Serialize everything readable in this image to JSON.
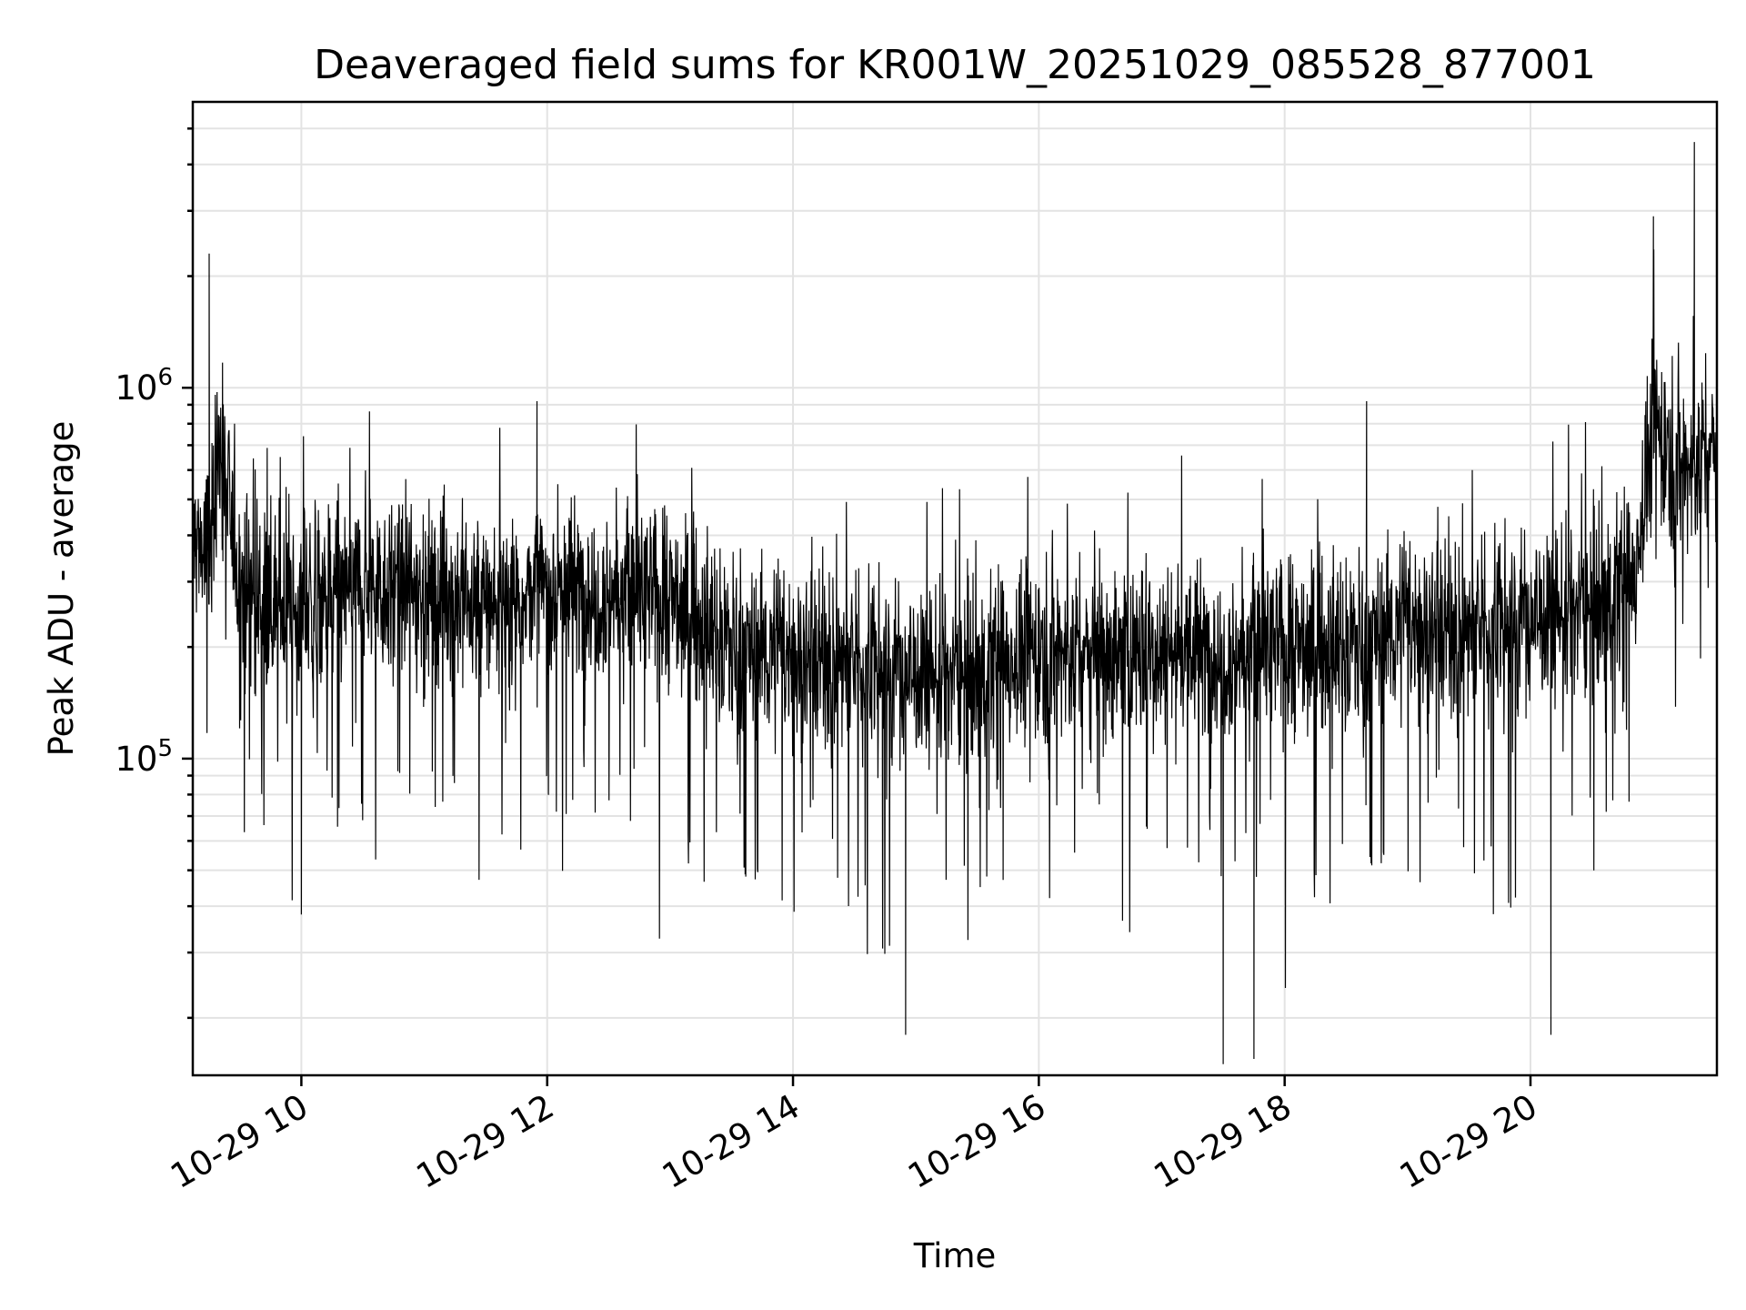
{
  "chart_data": {
    "type": "line",
    "title": "Deaveraged field sums for KR001W_20251029_085528_877001",
    "xlabel": "Time",
    "ylabel": "Peak ADU - average",
    "yscale": "log",
    "xlim": [
      "2025-10-29T09:07",
      "2025-10-29T21:31"
    ],
    "ylim": [
      14000,
      5900000
    ],
    "grid": true,
    "x_ticks": [
      {
        "value": "2025-10-29T10:00",
        "label": "10-29 10"
      },
      {
        "value": "2025-10-29T12:00",
        "label": "10-29 12"
      },
      {
        "value": "2025-10-29T14:00",
        "label": "10-29 14"
      },
      {
        "value": "2025-10-29T16:00",
        "label": "10-29 16"
      },
      {
        "value": "2025-10-29T18:00",
        "label": "10-29 18"
      },
      {
        "value": "2025-10-29T20:00",
        "label": "10-29 20"
      }
    ],
    "y_ticks": [
      {
        "value": 100000,
        "base": "10",
        "exp": "5"
      },
      {
        "value": 1000000,
        "base": "10",
        "exp": "6"
      }
    ],
    "series": [
      {
        "color": "#000000",
        "x": [
          "2025-10-29T09:07",
          "2025-10-29T09:15",
          "2025-10-29T09:20",
          "2025-10-29T09:30",
          "2025-10-29T09:45",
          "2025-10-29T10:00",
          "2025-10-29T10:30",
          "2025-10-29T11:00",
          "2025-10-29T11:30",
          "2025-10-29T12:00",
          "2025-10-29T12:30",
          "2025-10-29T13:00",
          "2025-10-29T13:30",
          "2025-10-29T14:00",
          "2025-10-29T14:30",
          "2025-10-29T15:00",
          "2025-10-29T15:30",
          "2025-10-29T16:00",
          "2025-10-29T16:30",
          "2025-10-29T17:00",
          "2025-10-29T17:30",
          "2025-10-29T18:00",
          "2025-10-29T18:30",
          "2025-10-29T19:00",
          "2025-10-29T19:30",
          "2025-10-29T20:00",
          "2025-10-29T20:30",
          "2025-10-29T20:50",
          "2025-10-29T21:00",
          "2025-10-29T21:15",
          "2025-10-29T21:31"
        ],
        "values": [
          400000,
          350000,
          700000,
          300000,
          260000,
          250000,
          300000,
          280000,
          260000,
          290000,
          280000,
          270000,
          200000,
          190000,
          180000,
          170000,
          170000,
          200000,
          190000,
          200000,
          190000,
          200000,
          200000,
          230000,
          220000,
          240000,
          260000,
          300000,
          800000,
          600000,
          700000
        ]
      }
    ],
    "spikes": [
      {
        "x": "2025-10-29T09:15",
        "y": 2300000
      },
      {
        "x": "2025-10-29T10:00",
        "y": 38000
      },
      {
        "x": "2025-10-29T11:55",
        "y": 920000
      },
      {
        "x": "2025-10-29T14:55",
        "y": 18000
      },
      {
        "x": "2025-10-29T17:30",
        "y": 15000
      },
      {
        "x": "2025-10-29T17:45",
        "y": 15500
      },
      {
        "x": "2025-10-29T18:40",
        "y": 920000
      },
      {
        "x": "2025-10-29T20:10",
        "y": 18000
      },
      {
        "x": "2025-10-29T21:00",
        "y": 2900000
      },
      {
        "x": "2025-10-29T21:20",
        "y": 4600000
      }
    ]
  }
}
